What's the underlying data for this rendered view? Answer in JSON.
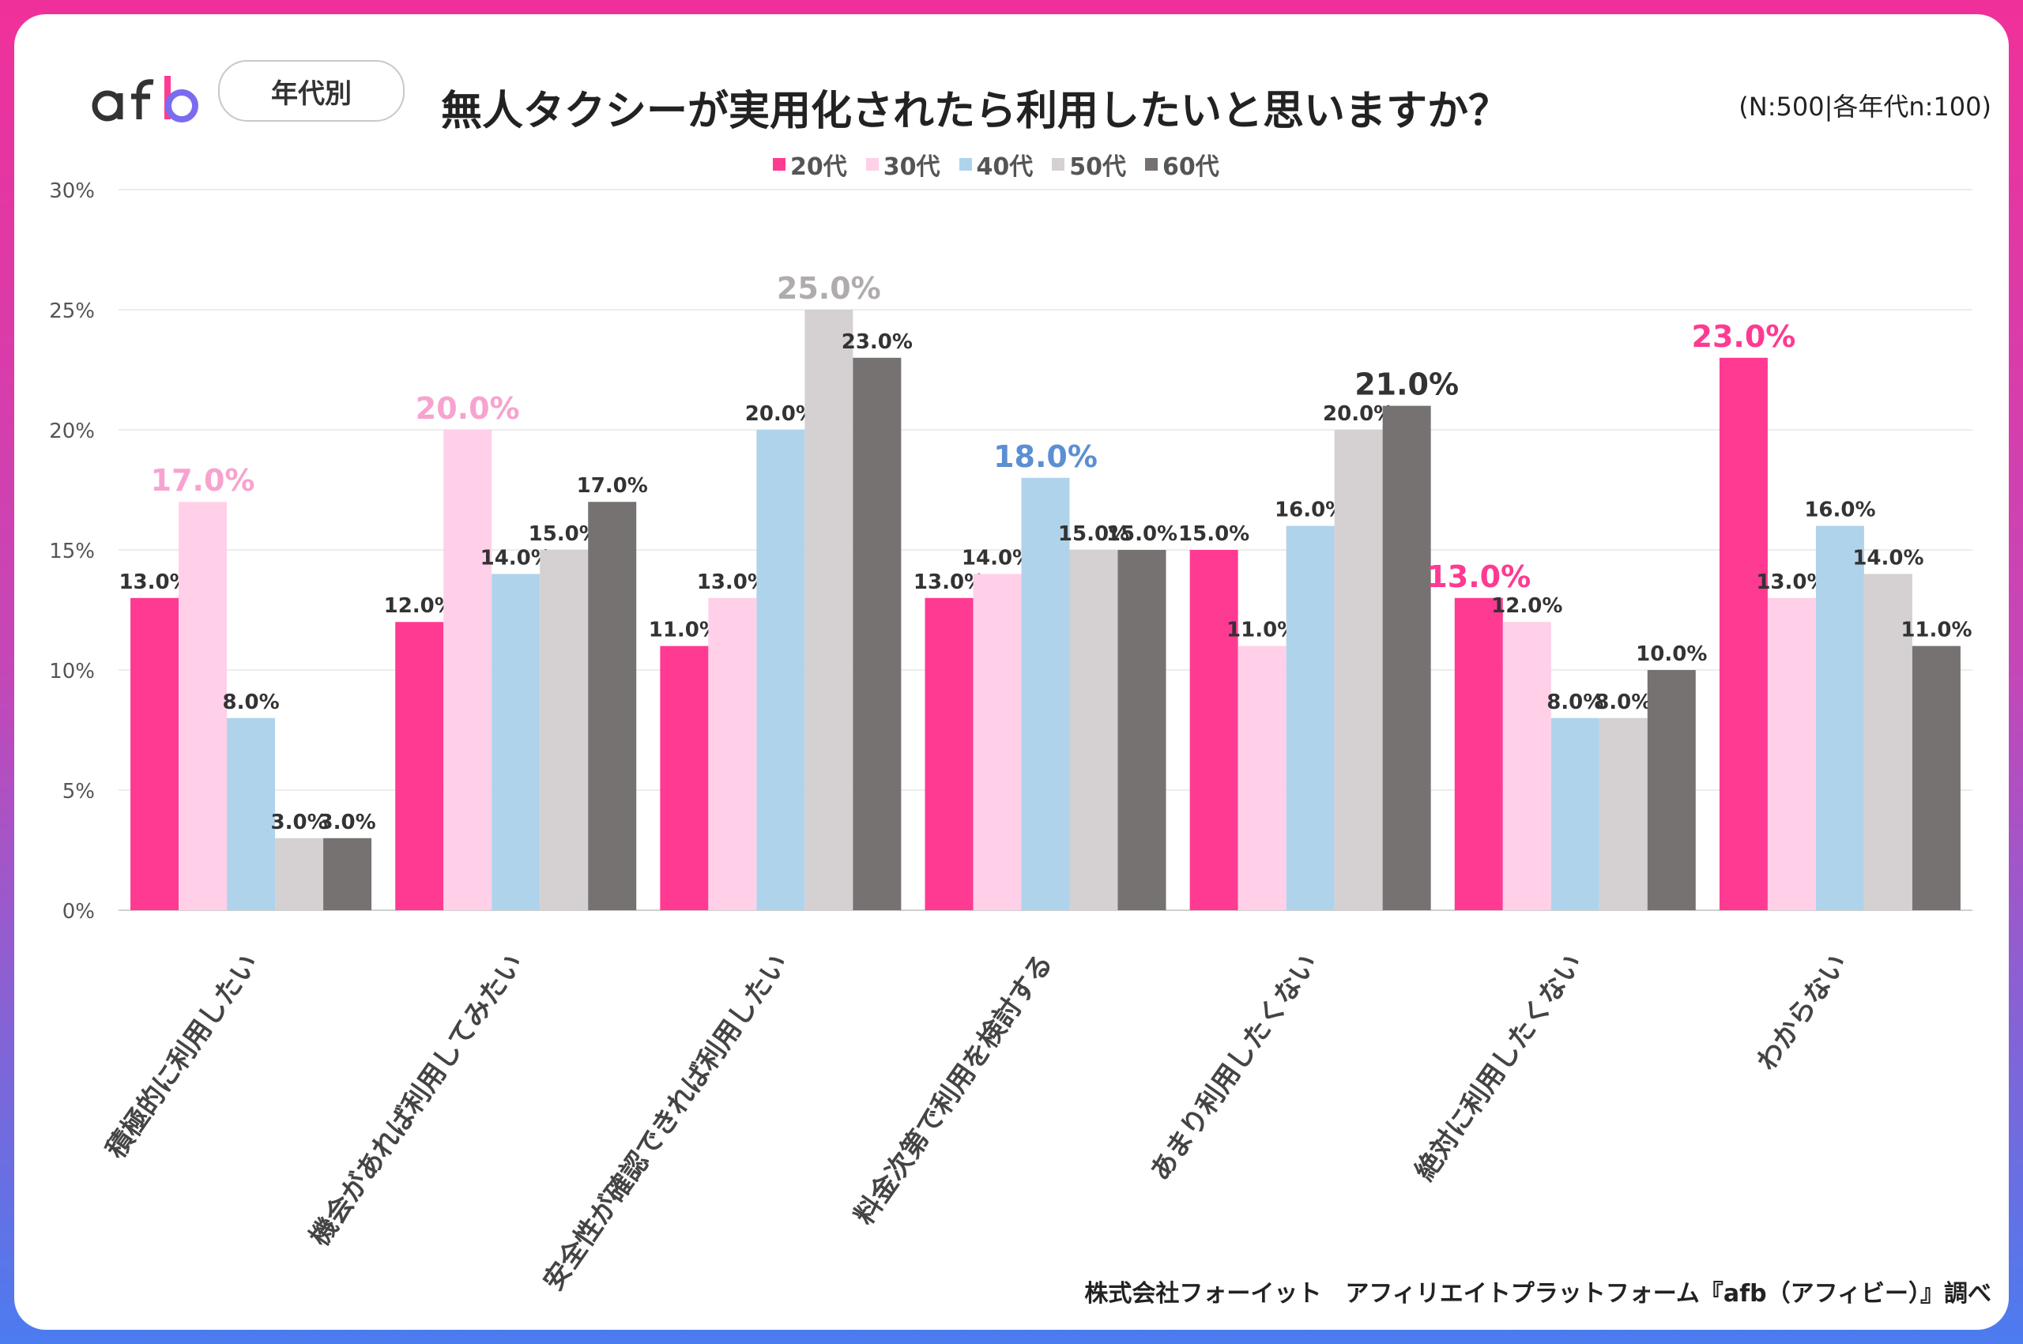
{
  "header": {
    "logo_text": "afb",
    "badge": "年代別",
    "title": "無人タクシーが実用化されたら利用したいと思いますか？",
    "sample_note": "(N:500|各年代n:100)"
  },
  "footer": {
    "source": "株式会社フォーイット　アフィリエイトプラットフォーム『afb（アフィビー）』調べ"
  },
  "colors": {
    "20代": "#ff3a92",
    "30代": "#ffd0e8",
    "40代": "#b0d3ec",
    "50代": "#d5d1d2",
    "60代": "#767272"
  },
  "chart_data": {
    "type": "bar",
    "title": "無人タクシーが実用化されたら利用したいと思いますか？",
    "categories": [
      "積極的に利用したい",
      "機会があれば利用してみたい",
      "安全性が確認できれば利用したい",
      "料金次第で利用を検討する",
      "あまり利用したくない",
      "絶対に利用したくない",
      "わからない"
    ],
    "series": [
      {
        "name": "20代",
        "values": [
          13.0,
          12.0,
          11.0,
          13.0,
          15.0,
          13.0,
          23.0
        ]
      },
      {
        "name": "30代",
        "values": [
          17.0,
          20.0,
          13.0,
          14.0,
          11.0,
          12.0,
          13.0
        ]
      },
      {
        "name": "40代",
        "values": [
          8.0,
          14.0,
          20.0,
          18.0,
          16.0,
          8.0,
          16.0
        ]
      },
      {
        "name": "50代",
        "values": [
          3.0,
          15.0,
          25.0,
          15.0,
          20.0,
          8.0,
          14.0
        ]
      },
      {
        "name": "60代",
        "values": [
          3.0,
          17.0,
          23.0,
          15.0,
          21.0,
          10.0,
          11.0
        ]
      }
    ],
    "highlights": [
      {
        "category_index": 0,
        "series_index": 1
      },
      {
        "category_index": 1,
        "series_index": 1
      },
      {
        "category_index": 2,
        "series_index": 3
      },
      {
        "category_index": 3,
        "series_index": 2
      },
      {
        "category_index": 4,
        "series_index": 4
      },
      {
        "category_index": 5,
        "series_index": 0
      },
      {
        "category_index": 6,
        "series_index": 0
      }
    ],
    "y_ticks": [
      "0%",
      "5%",
      "10%",
      "15%",
      "20%",
      "25%",
      "30%"
    ],
    "ylim": [
      0,
      30
    ],
    "ylabel": "",
    "xlabel": "",
    "grid": true,
    "legend": "top-center"
  }
}
